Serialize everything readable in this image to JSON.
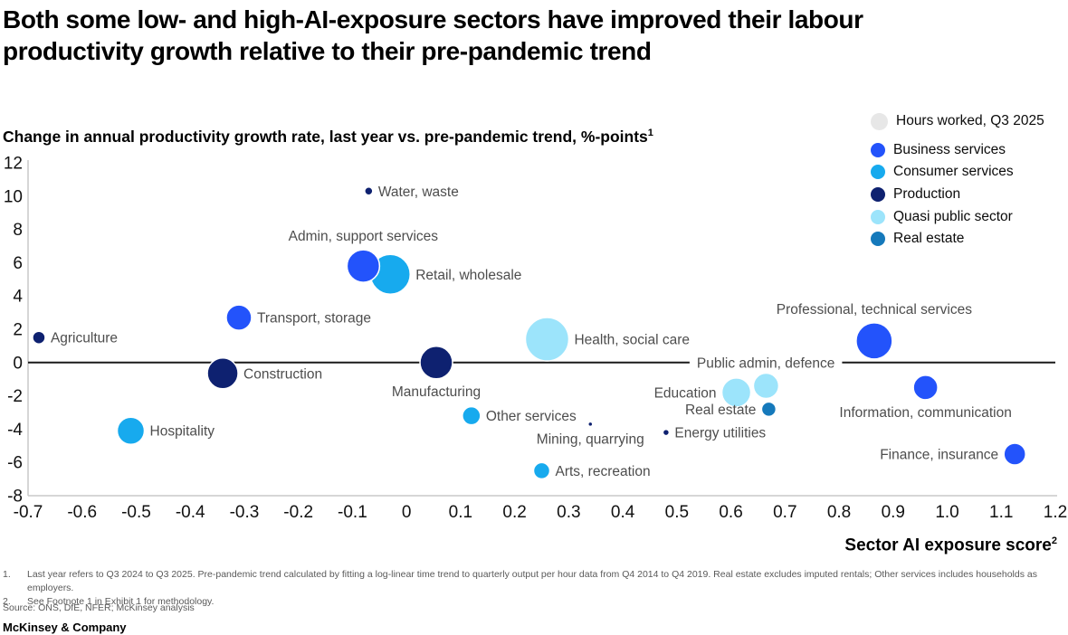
{
  "title": "Both some low- and high-AI-exposure sectors have improved their labour\nproductivity growth relative to their pre-pandemic trend",
  "subtitle": "Change in annual productivity growth rate, last year vs. pre-pandemic trend, %-points",
  "subtitle_sup": "1",
  "legend": {
    "size_label": "Hours worked, Q3 2025",
    "size_color": "#E7E7E7",
    "categories": [
      {
        "label": "Business services",
        "color": "#2353FB"
      },
      {
        "label": "Consumer services",
        "color": "#17AAEE"
      },
      {
        "label": "Production",
        "color": "#0E2170"
      },
      {
        "label": "Quasi public sector",
        "color": "#9CE4FB"
      },
      {
        "label": "Real estate",
        "color": "#1579BB"
      }
    ]
  },
  "chart_data": {
    "type": "scatter",
    "title": "Change in annual productivity growth rate, last year vs. pre-pandemic trend, %-points",
    "size_encoding": "Hours worked, Q3 2025",
    "x_axis": {
      "label": "Sector AI exposure score",
      "sup": "2",
      "min": -0.7,
      "max": 1.2,
      "tick_values": [
        -0.7,
        -0.6,
        -0.5,
        -0.4,
        -0.3,
        -0.2,
        -0.1,
        0,
        0.1,
        0.2,
        0.3,
        0.4,
        0.5,
        0.6,
        0.7,
        0.8,
        0.9,
        1.0,
        1.1,
        1.2
      ],
      "tick_labels": [
        "-0.7",
        "-0.6",
        "-0.5",
        "-0.4",
        "-0.3",
        "-0.2",
        "-0.1",
        "0",
        "0.1",
        "0.2",
        "0.3",
        "0.4",
        "0.5",
        "0.6",
        "0.7",
        "0.8",
        "0.9",
        "1.0",
        "1.1",
        "1.2"
      ]
    },
    "y_axis": {
      "min": -8,
      "max": 12,
      "tick_values": [
        12,
        10,
        8,
        6,
        4,
        2,
        0,
        -2,
        -4,
        -6,
        -8
      ],
      "tick_labels": [
        "12",
        "10",
        "8",
        "6",
        "4",
        "2",
        "0",
        "-2",
        "-4",
        "-6",
        "-8"
      ]
    },
    "zero_line_color": "#1a1a1a",
    "label_color": "#4D4D4D",
    "points": [
      {
        "label": "Agriculture",
        "category": "Production",
        "x": -0.68,
        "y": 1.5,
        "r": 7,
        "label_side": "right"
      },
      {
        "label": "Water, waste",
        "category": "Production",
        "x": -0.07,
        "y": 10.3,
        "r": 4.5,
        "label_side": "right"
      },
      {
        "label": "Transport, storage",
        "category": "Business services",
        "x": -0.31,
        "y": 2.7,
        "r": 14,
        "label_side": "right"
      },
      {
        "label": "Retail, wholesale",
        "category": "Consumer services",
        "x": -0.03,
        "y": 5.3,
        "r": 22,
        "label_side": "right"
      },
      {
        "label": "Admin, support services",
        "category": "Business services",
        "x": -0.08,
        "y": 5.8,
        "r": 18,
        "label_side": "above"
      },
      {
        "label": "Construction",
        "category": "Production",
        "x": -0.34,
        "y": -0.65,
        "r": 17,
        "label_side": "right"
      },
      {
        "label": "Hospitality",
        "category": "Consumer services",
        "x": -0.51,
        "y": -4.1,
        "r": 15,
        "label_side": "right"
      },
      {
        "label": "Manufacturing",
        "category": "Production",
        "x": 0.055,
        "y": 0,
        "r": 18,
        "label_side": "below"
      },
      {
        "label": "Health, social care",
        "category": "Quasi public sector",
        "x": 0.26,
        "y": 1.4,
        "r": 24,
        "label_side": "right"
      },
      {
        "label": "Other services",
        "category": "Consumer services",
        "x": 0.12,
        "y": -3.2,
        "r": 10,
        "label_side": "right"
      },
      {
        "label": "Mining, quarrying",
        "category": "Production",
        "x": 0.34,
        "y": -3.7,
        "r": 2.5,
        "label_side": "below"
      },
      {
        "label": "Arts, recreation",
        "category": "Consumer services",
        "x": 0.25,
        "y": -6.5,
        "r": 9,
        "label_side": "right"
      },
      {
        "label": "Energy utilities",
        "category": "Production",
        "x": 0.48,
        "y": -4.2,
        "r": 3.5,
        "label_side": "right"
      },
      {
        "label": "Education",
        "category": "Quasi public sector",
        "x": 0.61,
        "y": -1.8,
        "r": 16,
        "label_side": "left"
      },
      {
        "label": "Public admin, defence",
        "category": "Quasi public sector",
        "x": 0.665,
        "y": -1.4,
        "r": 14,
        "label_side": "on-line"
      },
      {
        "label": "Real estate",
        "category": "Real estate",
        "x": 0.67,
        "y": -2.8,
        "r": 8,
        "label_side": "left"
      },
      {
        "label": "Professional, technical services",
        "category": "Business services",
        "x": 0.865,
        "y": 1.3,
        "r": 20,
        "label_side": "above"
      },
      {
        "label": "Information, communication",
        "category": "Business services",
        "x": 0.96,
        "y": -1.5,
        "r": 13.5,
        "label_side": "below"
      },
      {
        "label": "Finance, insurance",
        "category": "Business services",
        "x": 1.125,
        "y": -5.5,
        "r": 12,
        "label_side": "left"
      }
    ]
  },
  "footnotes": [
    {
      "num": "1.",
      "text": "Last year refers to Q3 2024 to Q3 2025. Pre-pandemic trend calculated by fitting a log-linear time trend to quarterly output per hour data from Q4 2014 to Q4 2019. Real estate excludes imputed rentals; Other services includes households as employers."
    },
    {
      "num": "2.",
      "text": "See Footnote 1 in Exhibit 1 for methodology."
    }
  ],
  "source": "Source: ONS, DfE, NFER; McKinsey analysis",
  "brand": "McKinsey & Company"
}
